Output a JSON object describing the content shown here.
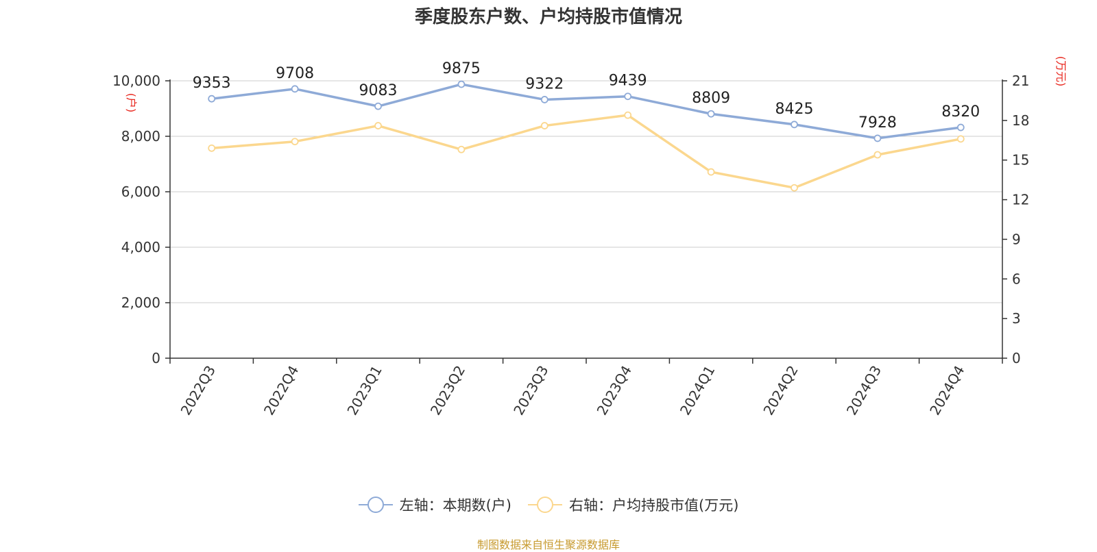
{
  "title": "季度股东户数、户均持股市值情况",
  "source_note": "制图数据来自恒生聚源数据库",
  "colors": {
    "series_left": "#8eaad7",
    "series_right": "#fbd78e",
    "unit_label": "#e8251c",
    "source_note": "#c79a2e"
  },
  "chart_data": {
    "type": "line",
    "categories": [
      "2022Q3",
      "2022Q4",
      "2023Q1",
      "2023Q2",
      "2023Q3",
      "2023Q4",
      "2024Q1",
      "2024Q2",
      "2024Q3",
      "2024Q4"
    ],
    "y_left": {
      "unit": "(户)",
      "ylim": [
        0,
        10000
      ],
      "ticks": [
        0,
        2000,
        4000,
        6000,
        8000,
        10000
      ],
      "tick_labels": [
        "0",
        "2,000",
        "4,000",
        "6,000",
        "8,000",
        "10,000"
      ]
    },
    "y_right": {
      "unit": "(万元)",
      "ylim": [
        0,
        21
      ],
      "ticks": [
        0,
        3,
        6,
        9,
        12,
        15,
        18,
        21
      ],
      "tick_labels": [
        "0",
        "3",
        "6",
        "9",
        "12",
        "15",
        "18",
        "21"
      ]
    },
    "grid": true,
    "legend_placement": "bottom-center",
    "series": [
      {
        "name": "左轴：本期数(户)",
        "axis": "left",
        "values": [
          9353,
          9708,
          9083,
          9875,
          9322,
          9439,
          8809,
          8425,
          7928,
          8320
        ],
        "labels": [
          "9353",
          "9708",
          "9083",
          "9875",
          "9322",
          "9439",
          "8809",
          "8425",
          "7928",
          "8320"
        ]
      },
      {
        "name": "右轴：户均持股市值(万元)",
        "axis": "right",
        "values": [
          15.9,
          16.4,
          17.6,
          15.8,
          17.6,
          18.4,
          14.1,
          12.9,
          15.4,
          16.6
        ]
      }
    ]
  }
}
